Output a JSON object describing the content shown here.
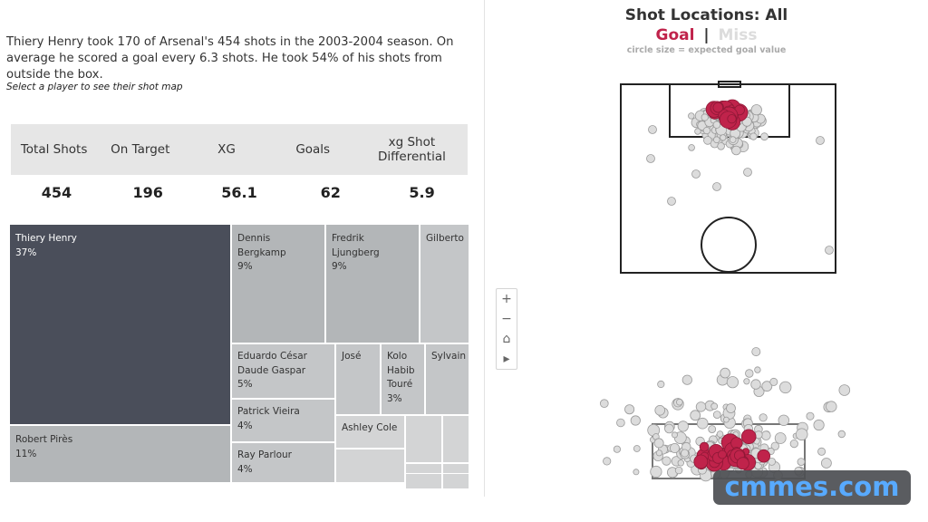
{
  "summary": {
    "text": "Thiery Henry took 170 of Arsenal's 454 shots in the 2003-2004 season. On average he scored a goal every 6.3 shots. He took 54% of his shots from outside the box.",
    "hint": "Select a player to see their shot map"
  },
  "kpis": [
    {
      "label": "Total Shots",
      "value": "454"
    },
    {
      "label": "On Target",
      "value": "196"
    },
    {
      "label": "XG",
      "value": "56.1"
    },
    {
      "label": "Goals",
      "value": "62"
    },
    {
      "label": "xg Shot Differential",
      "value": "5.9"
    }
  ],
  "treemap": [
    {
      "name": "Thiery Henry",
      "pct": "37%"
    },
    {
      "name": "Robert Pirès",
      "pct": "11%"
    },
    {
      "name": "Dennis Bergkamp",
      "pct": "9%"
    },
    {
      "name": "Fredrik Ljungberg",
      "pct": "9%"
    },
    {
      "name": "Gilberto",
      "pct": ""
    },
    {
      "name": "Eduardo César Daude Gaspar",
      "pct": "5%"
    },
    {
      "name": "José",
      "pct": ""
    },
    {
      "name": "Kolo Habib Touré",
      "pct": "3%"
    },
    {
      "name": "Sylvain",
      "pct": ""
    },
    {
      "name": "Patrick Vieira",
      "pct": "4%"
    },
    {
      "name": "Ashley Cole",
      "pct": ""
    },
    {
      "name": "Ray Parlour",
      "pct": "4%"
    }
  ],
  "shotmap": {
    "title": "Shot Locations: All",
    "legend_goal": "Goal",
    "legend_sep": "|",
    "legend_miss": "Miss",
    "note": "circle size = expected goal value",
    "goal_color": "#c0234b",
    "miss_color": "#dcdcdc"
  },
  "zoom_controls": {
    "plus": "+",
    "minus": "−",
    "home": "⌂",
    "play": "▸"
  },
  "watermark": "cmmes.com"
}
